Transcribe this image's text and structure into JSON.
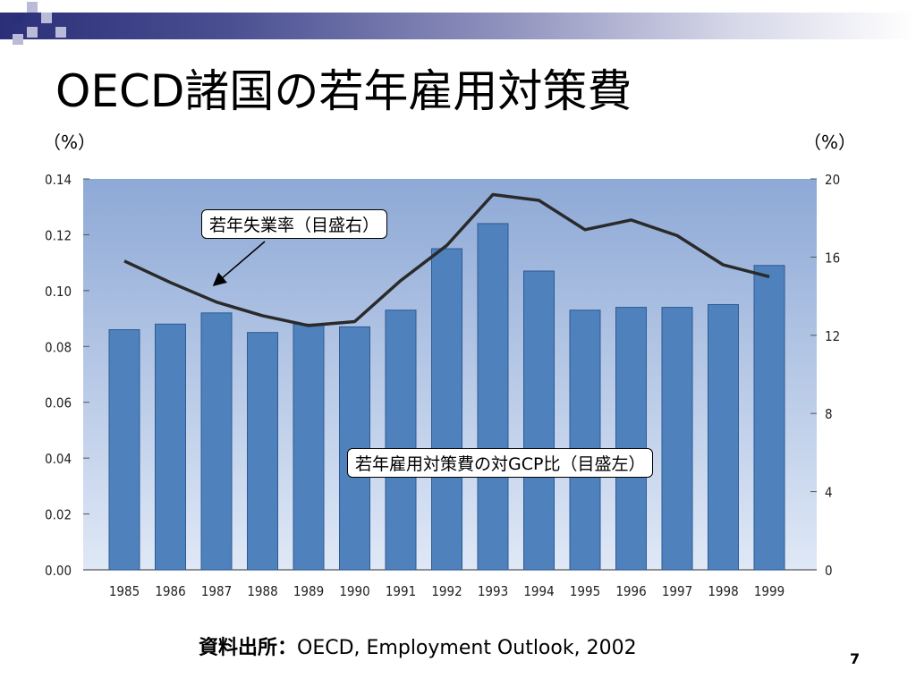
{
  "slide": {
    "title": "OECD諸国の若年雇用対策費",
    "left_unit": "（%）",
    "right_unit": "（%）",
    "source_label": "資料出所：",
    "source_text": "OECD, Employment Outlook, 2002",
    "page_number": "7"
  },
  "colors": {
    "bar": "#4f81bd",
    "bar_edge": "#2d5a93",
    "line": "#2a2a2a",
    "plot_top": "#8ea9d6",
    "plot_bottom": "#dfe8f6",
    "band_dark": "#2b2f78",
    "deco_square": "#2b2f78",
    "deco_light": "#b9bbd8"
  },
  "chart_data": {
    "type": "bar",
    "categories": [
      "1985",
      "1986",
      "1987",
      "1988",
      "1989",
      "1990",
      "1991",
      "1992",
      "1993",
      "1994",
      "1995",
      "1996",
      "1997",
      "1998",
      "1999"
    ],
    "series": [
      {
        "name": "若年雇用対策費の対GCP比（目盛左）",
        "type": "bar",
        "axis": "left",
        "values": [
          0.086,
          0.088,
          0.092,
          0.085,
          0.088,
          0.087,
          0.093,
          0.115,
          0.124,
          0.107,
          0.093,
          0.094,
          0.094,
          0.095,
          0.109
        ]
      },
      {
        "name": "若年失業率（目盛右）",
        "type": "line",
        "axis": "right",
        "values": [
          15.8,
          14.7,
          13.7,
          13.0,
          12.5,
          12.7,
          14.8,
          16.6,
          19.2,
          18.9,
          17.4,
          17.9,
          17.1,
          15.6,
          15.0
        ]
      }
    ],
    "y_left": {
      "ticks": [
        "0.00",
        "0.02",
        "0.04",
        "0.06",
        "0.08",
        "0.10",
        "0.12",
        "0.14"
      ],
      "range": [
        0,
        0.14
      ]
    },
    "y_right": {
      "ticks": [
        "0",
        "4",
        "8",
        "12",
        "16",
        "20"
      ],
      "range": [
        0,
        20
      ]
    },
    "callouts": {
      "line": "若年失業率（目盛右）",
      "bar": "若年雇用対策費の対GCP比（目盛左）"
    },
    "grid": false,
    "legend": "callouts"
  }
}
